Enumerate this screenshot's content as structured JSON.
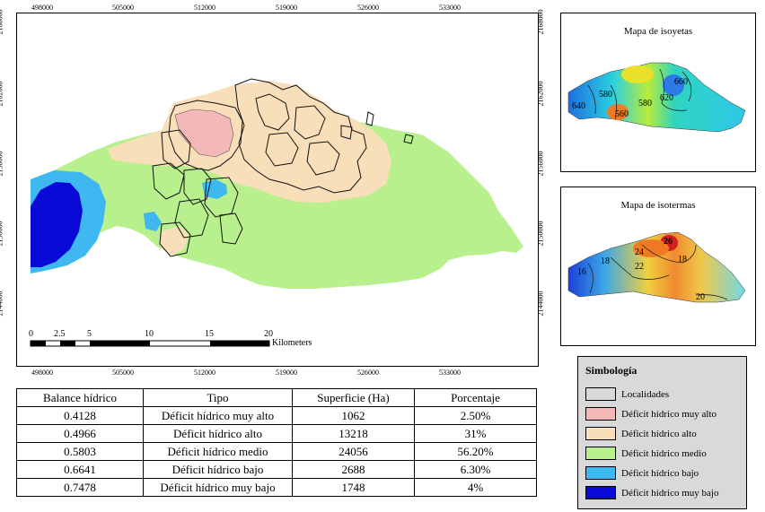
{
  "main_map": {
    "top_ticks": [
      "498000",
      "505000",
      "512000",
      "519000",
      "526000",
      "533000"
    ],
    "bottom_ticks": [
      "498000",
      "505000",
      "512000",
      "519000",
      "526000",
      "533000"
    ],
    "left_ticks": [
      "2168000",
      "2162000",
      "2156000",
      "2150000",
      "2144000"
    ],
    "right_ticks": [
      "2168000",
      "2162000",
      "2156000",
      "2150000",
      "2144000"
    ],
    "scale_labels": [
      "0",
      "2.5",
      "5",
      "10",
      "15",
      "20"
    ],
    "scale_unit": "Kilometers"
  },
  "inset_isoyetas": {
    "title": "Mapa de isoyetas",
    "contour_labels": [
      "640",
      "580",
      "560",
      "580",
      "660",
      "620"
    ]
  },
  "inset_isotermas": {
    "title": "Mapa de isotermas",
    "contour_labels": [
      "16",
      "18",
      "22",
      "24",
      "26",
      "20",
      "18"
    ]
  },
  "table": {
    "headers": [
      "Balance hídrico",
      "Tipo",
      "Superficie (Ha)",
      "Porcentaje"
    ],
    "rows": [
      [
        "0.4128",
        "Déficit hídrico muy alto",
        "1062",
        "2.50%"
      ],
      [
        "0.4966",
        "Déficit hídrico alto",
        "13218",
        "31%"
      ],
      [
        "0.5803",
        "Déficit hídrico medio",
        "24056",
        "56.20%"
      ],
      [
        "0.6641",
        "Déficit hídrico bajo",
        "2688",
        "6.30%"
      ],
      [
        "0.7478",
        "Déficit hídrico muy bajo",
        "1748",
        "4%"
      ]
    ]
  },
  "legend": {
    "title": "Simbología",
    "items": [
      {
        "label": "Localidades",
        "color": "#d9d9d9"
      },
      {
        "label": "Déficit hídrico muy alto",
        "color": "#f4b8b8"
      },
      {
        "label": "Déficit hídrico alto",
        "color": "#f9dfb9"
      },
      {
        "label": "Déficit hídrico medio",
        "color": "#b8f08e"
      },
      {
        "label": "Déficit hídrico bajo",
        "color": "#3fb8f2"
      },
      {
        "label": "Déficit hídrico muy bajo",
        "color": "#0a0ad6"
      }
    ]
  }
}
